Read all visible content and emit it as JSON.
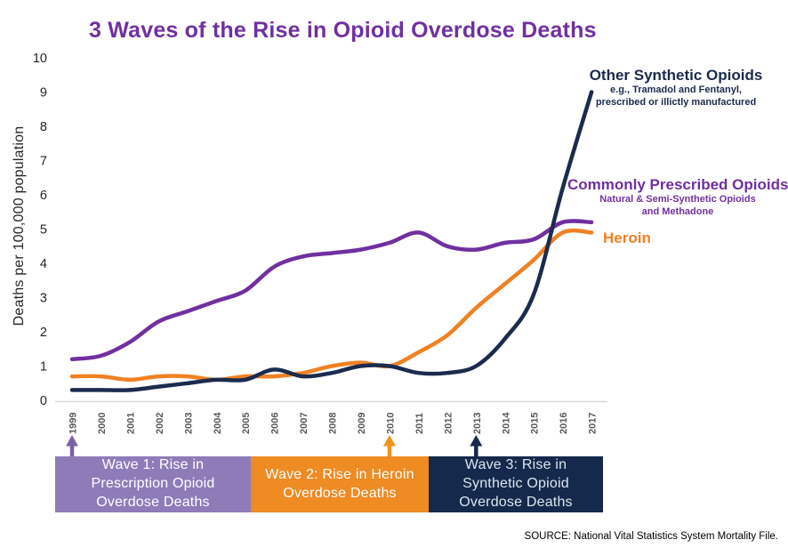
{
  "title": {
    "text": "3 Waves of the Rise in Opioid Overdose Deaths",
    "color": "#7030A0"
  },
  "y_axis": {
    "label": "Deaths per 100,000 population",
    "ticks": [
      0,
      1,
      2,
      3,
      4,
      5,
      6,
      7,
      8,
      9,
      10
    ],
    "tick_color": "#262626"
  },
  "x_axis": {
    "tick_color": "#595959",
    "axis_line_color": "#D9D9D9"
  },
  "chart_data": {
    "type": "line",
    "title": "3 Waves of the Rise in Opioid Overdose Deaths",
    "xlabel": "",
    "ylabel": "Deaths per 100,000 population",
    "ylim": [
      0,
      10
    ],
    "grid": false,
    "legend_position": "inline-right",
    "x": [
      "1999",
      "2000",
      "2001",
      "2002",
      "2003",
      "2004",
      "2005",
      "2006",
      "2007",
      "2008",
      "2009",
      "2010",
      "2011",
      "2012",
      "2013",
      "2014",
      "2015",
      "2016",
      "2017"
    ],
    "series": [
      {
        "name": "Commonly Prescribed Opioids",
        "subtitle_lines": [
          "Natural & Semi-Synthetic Opioids",
          "and Methadone"
        ],
        "color": "#7030A0",
        "values": [
          1.2,
          1.3,
          1.7,
          2.3,
          2.6,
          2.9,
          3.2,
          3.9,
          4.2,
          4.3,
          4.4,
          4.6,
          4.9,
          4.5,
          4.4,
          4.6,
          4.7,
          5.2,
          5.2
        ]
      },
      {
        "name": "Heroin",
        "subtitle_lines": [],
        "color": "#F08122",
        "values": [
          0.7,
          0.7,
          0.6,
          0.7,
          0.7,
          0.6,
          0.7,
          0.7,
          0.8,
          1.0,
          1.1,
          1.0,
          1.4,
          1.9,
          2.7,
          3.4,
          4.1,
          4.9,
          4.9
        ]
      },
      {
        "name": "Other Synthetic Opioids",
        "subtitle_lines": [
          "e.g., Tramadol and Fentanyl,",
          "prescribed or illictly manufactured"
        ],
        "color": "#1B2B4D",
        "values": [
          0.3,
          0.3,
          0.3,
          0.4,
          0.5,
          0.6,
          0.6,
          0.9,
          0.7,
          0.8,
          1.0,
          1.0,
          0.8,
          0.8,
          1.0,
          1.8,
          3.1,
          6.2,
          9.0
        ]
      }
    ]
  },
  "waves": [
    {
      "label_lines": [
        "Wave 1: Rise in",
        "Prescription Opioid",
        "Overdose Deaths"
      ],
      "box_color": "#8F7BB8",
      "text_color": "#FFFFFF",
      "arrow_year": "1999",
      "arrow_color": "#7C60A8"
    },
    {
      "label_lines": [
        "Wave 2: Rise in Heroin",
        "Overdose Deaths"
      ],
      "box_color": "#EE8B23",
      "text_color": "#FFFFFF",
      "arrow_year": "2010",
      "arrow_color": "#F0941F"
    },
    {
      "label_lines": [
        "Wave 3: Rise in",
        "Synthetic Opioid",
        "Overdose Deaths"
      ],
      "box_color": "#14294B",
      "text_color": "#DCE6F2",
      "arrow_year": "2013",
      "arrow_color": "#16294E"
    }
  ],
  "source": "SOURCE: National Vital Statistics System Mortality File."
}
